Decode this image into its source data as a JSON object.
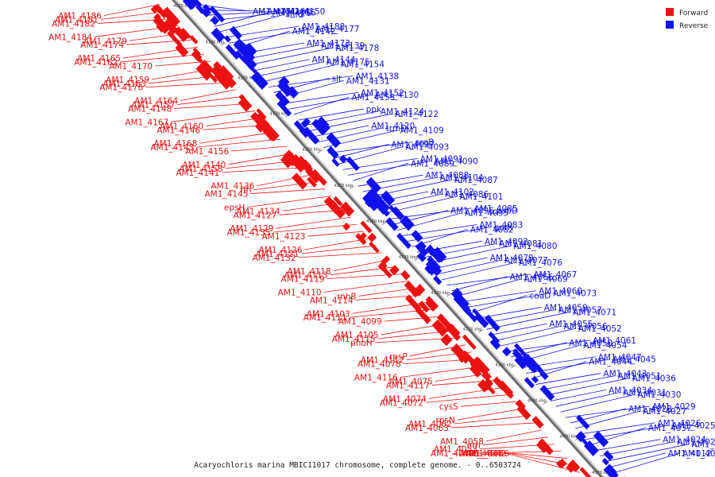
{
  "legend": {
    "forward_label": "Forward",
    "reverse_label": "Reverse",
    "forward_color": "#ee1111",
    "reverse_color": "#1111ee"
  },
  "caption": "Acaryochloris marina MBIC11017 chromosome, complete genome. - 0..6503724",
  "scale_ticks": [
    "4200 kbp",
    "4190 kbp",
    "4180 kbp",
    "4170 kbp",
    "4160 kbp",
    "4150 kbp",
    "4140 kbp",
    "4130 kbp",
    "4120 kbp",
    "4110 kbp",
    "4100 kbp",
    "4090 kbp",
    "4080 kbp",
    "4070 kbp"
  ],
  "forward_genes": [
    "AM1_4186",
    "AM1_4181",
    "AM1_4182",
    "AM1_4184",
    "AM1_4179",
    "AM1_4174",
    "AM1_4165",
    "AM1_4162",
    "AM1_4170",
    "AM1_4159",
    "AM1_4163",
    "AM1_4176",
    "AM1_4164",
    "AM1_4157",
    "AM1_4148",
    "AM1_4167",
    "AM1_4160",
    "AM1_4146",
    "AM1_4168",
    "AM1_4143",
    "AM1_4156",
    "AM1_4140",
    "AM1_4158",
    "AM1_4141",
    "AM1_4136",
    "ffh",
    "AM1_4145",
    "epsH",
    "AM1_4134",
    "AM1_4127",
    "AM1_4129",
    "AM1_4135",
    "AM1_4123",
    "AM1_4126",
    "AM1_4121",
    "AM1_4132",
    "AM1_4118",
    "AM1_4113",
    "AM1_4119",
    "AM1_4110",
    "rnhB",
    "AM1_4114",
    "AM1_4103",
    "AM1_4111",
    "AM1_4099",
    "AM1_4105",
    "AM1_4115",
    "phoH",
    "rpsP",
    "AM1_4112",
    "AM1_4078",
    "AM1_4116",
    "AM1_4075",
    "AM1_4117",
    "AM1_4074",
    "AM1_4072",
    "cysS",
    "rpsN",
    "AM1_4062",
    "AM1_4063",
    "AM1_4058",
    "nth",
    "AM1_4053",
    "AM1_4049",
    "AM1_4046",
    "AM1_4042",
    "AM1_4041"
  ],
  "reverse_genes": [
    "AM1_4151",
    "AM1_4161",
    "AM1_4150",
    "ung",
    "AM1_4155",
    "mfd",
    "AM1_4188",
    "AM1_4177",
    "AM1_4142",
    "AM1_4173",
    "AM1_4139",
    "AM1_4178",
    "AM1_4144",
    "AM1_4175",
    "AM1_4154",
    "AM1_4138",
    "slt",
    "AM1_4131",
    "AM1_4152",
    "AM1_4130",
    "AM1_4153",
    "ppk",
    "AM1_4124",
    "AM1_4122",
    "AM1_4120",
    "trmD",
    "AM1_4109",
    "argB",
    "AM1_4097",
    "AM1_4093",
    "AM1_4091",
    "AM1_4090",
    "AM1_4089",
    "AM1_4088",
    "AM1_4104",
    "AM1_4087",
    "AM1_4102",
    "AM1_4086",
    "AM1_4101",
    "AM1_4085",
    "AM1_4096.psbD",
    "AM1_4095",
    "AM1_4083",
    "gntK",
    "AM1_4082",
    "AM1_4092",
    "AM1_4081",
    "AM1_4080",
    "AM1_4079",
    "AM1_4077",
    "AM1_4076",
    "AM1_4067",
    "AM1_4066",
    "AM1_4069",
    "AM1_4060",
    "AM1_4073",
    "coaD",
    "AM1_4059",
    "AM1_4057",
    "AM1_4071",
    "AM1_4055",
    "AM1_4056",
    "AM1_4052",
    "AM1_4061",
    "AM1_4050",
    "AM1_4054",
    "AM1_4047",
    "AM1_4045",
    "AM1_4044",
    "AM1_4043",
    "AM1_4051",
    "AM1_4036",
    "AM1_4034",
    "AM1_4031",
    "AM1_4030",
    "AM1_4029",
    "AM1_4028",
    "AM1_4027",
    "AM1_4026",
    "AM1_4025",
    "AM1_4037",
    "AM1_4024",
    "AM1_4023",
    "AM1_4019",
    "AM1_4012",
    "AM1_4011"
  ]
}
